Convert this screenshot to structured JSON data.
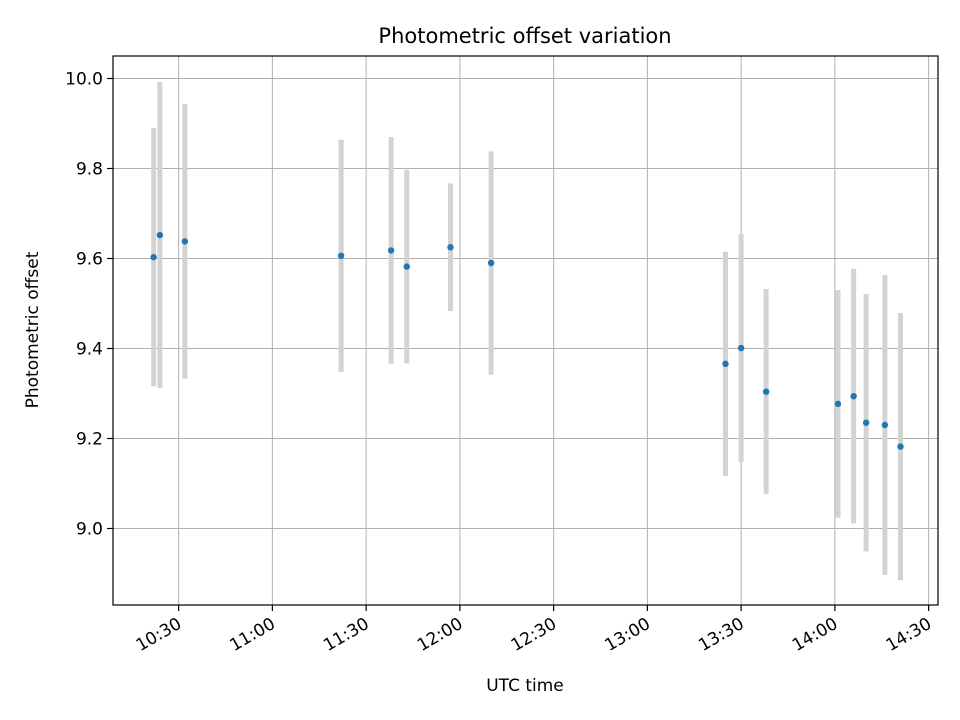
{
  "chart_data": {
    "type": "scatter",
    "title": "Photometric offset variation",
    "xlabel": "UTC time",
    "ylabel": "Photometric offset",
    "x_ticks": [
      "10:30",
      "11:00",
      "11:30",
      "12:00",
      "12:30",
      "13:00",
      "13:30",
      "14:00",
      "14:30"
    ],
    "y_ticks": [
      "9.0",
      "9.2",
      "9.4",
      "9.6",
      "9.8",
      "10.0"
    ],
    "xlim": [
      "10:09",
      "14:33"
    ],
    "ylim": [
      8.83,
      10.05
    ],
    "grid": true,
    "marker_color": "#1f77b4",
    "errorbar_color": "#d3d3d3",
    "points": [
      {
        "time": "10:22",
        "y": 9.603,
        "err": 0.287
      },
      {
        "time": "10:24",
        "y": 9.652,
        "err": 0.34
      },
      {
        "time": "10:32",
        "y": 9.638,
        "err": 0.305
      },
      {
        "time": "11:22",
        "y": 9.606,
        "err": 0.258
      },
      {
        "time": "11:38",
        "y": 9.618,
        "err": 0.252
      },
      {
        "time": "11:43",
        "y": 9.582,
        "err": 0.215
      },
      {
        "time": "11:57",
        "y": 9.625,
        "err": 0.142
      },
      {
        "time": "12:10",
        "y": 9.59,
        "err": 0.248
      },
      {
        "time": "13:25",
        "y": 9.366,
        "err": 0.249
      },
      {
        "time": "13:30",
        "y": 9.401,
        "err": 0.253
      },
      {
        "time": "13:38",
        "y": 9.304,
        "err": 0.228
      },
      {
        "time": "14:01",
        "y": 9.277,
        "err": 0.253
      },
      {
        "time": "14:06",
        "y": 9.294,
        "err": 0.283
      },
      {
        "time": "14:10",
        "y": 9.235,
        "err": 0.286
      },
      {
        "time": "14:16",
        "y": 9.23,
        "err": 0.333
      },
      {
        "time": "14:21",
        "y": 9.182,
        "err": 0.297
      }
    ]
  }
}
